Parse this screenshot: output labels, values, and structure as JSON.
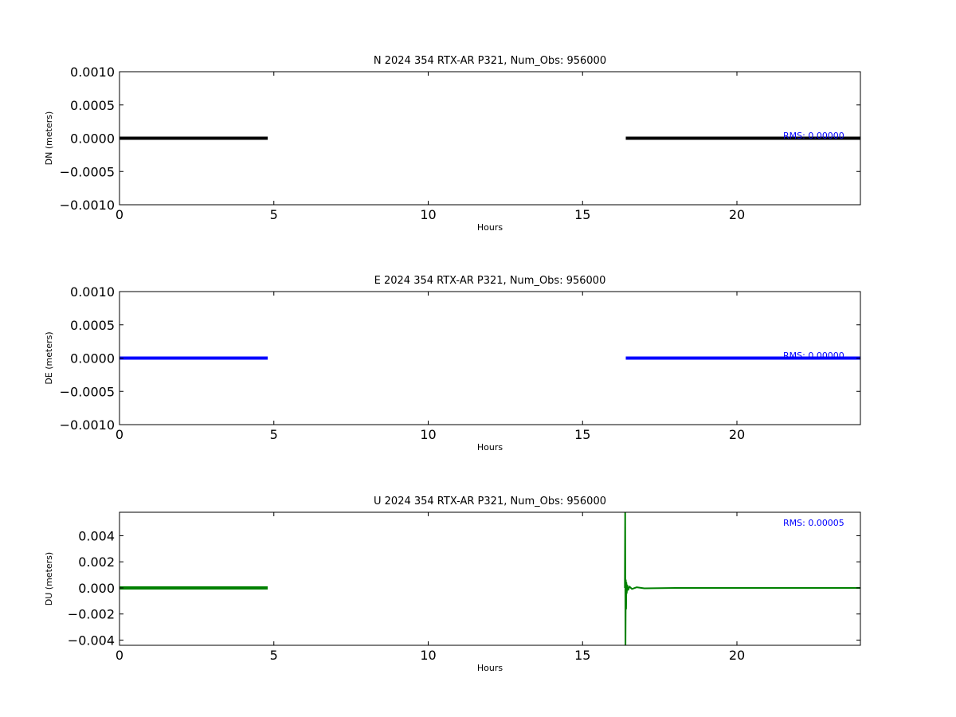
{
  "chart_data": [
    {
      "type": "line",
      "title": "N 2024 354 RTX-AR  P321, Num_Obs: 956000",
      "xlabel": "Hours",
      "ylabel": "DN (meters)",
      "xlim": [
        0,
        24
      ],
      "ylim": [
        -0.001,
        0.001
      ],
      "xticks": [
        "0",
        "5",
        "10",
        "15",
        "20"
      ],
      "yticks": [
        "0.0010",
        "0.0005",
        "0.0000",
        "−0.0005",
        "−0.0010"
      ],
      "annotation": "RMS:  0.00000",
      "annotation_color": "#0000ff",
      "color": "#000000",
      "series": [
        {
          "x": [
            0,
            4.8
          ],
          "y": [
            0,
            0
          ]
        },
        {
          "x": [
            16.4,
            24
          ],
          "y": [
            0,
            0
          ]
        }
      ]
    },
    {
      "type": "line",
      "title": "E 2024 354 RTX-AR  P321, Num_Obs: 956000",
      "xlabel": "Hours",
      "ylabel": "DE (meters)",
      "xlim": [
        0,
        24
      ],
      "ylim": [
        -0.001,
        0.001
      ],
      "xticks": [
        "0",
        "5",
        "10",
        "15",
        "20"
      ],
      "yticks": [
        "0.0010",
        "0.0005",
        "0.0000",
        "−0.0005",
        "−0.0010"
      ],
      "annotation": "RMS:  0.00000",
      "annotation_color": "#0000ff",
      "color": "#0000ff",
      "series": [
        {
          "x": [
            0,
            4.8
          ],
          "y": [
            0,
            0
          ]
        },
        {
          "x": [
            16.4,
            24
          ],
          "y": [
            0,
            0
          ]
        }
      ]
    },
    {
      "type": "line",
      "title": "U 2024 354 RTX-AR  P321, Num_Obs: 956000",
      "xlabel": "Hours",
      "ylabel": "DU (meters)",
      "xlim": [
        0,
        24
      ],
      "ylim": [
        -0.0044,
        0.0058
      ],
      "xticks": [
        "0",
        "5",
        "10",
        "15",
        "20"
      ],
      "yticks": [
        "0.004",
        "0.002",
        "0.000",
        "−0.002",
        "−0.004"
      ],
      "annotation": "RMS:  0.00005",
      "annotation_color": "#0000ff",
      "color": "#008000",
      "series": [
        {
          "x": [
            0,
            4.8
          ],
          "y": [
            0,
            0
          ]
        },
        {
          "x": [
            16.37,
            16.38,
            16.39,
            16.4,
            16.41,
            16.42,
            16.43,
            16.45,
            16.48,
            16.52,
            16.6,
            16.75,
            17.0,
            17.5,
            18.0,
            18.5,
            24
          ],
          "y": [
            0,
            0.0058,
            -0.0044,
            0.0006,
            -0.0016,
            0.0004,
            -0.0004,
            0.0002,
            -0.00015,
            0.0001,
            -8e-05,
            5e-05,
            -3e-05,
            -2e-05,
            0,
            0,
            0
          ]
        }
      ]
    }
  ]
}
